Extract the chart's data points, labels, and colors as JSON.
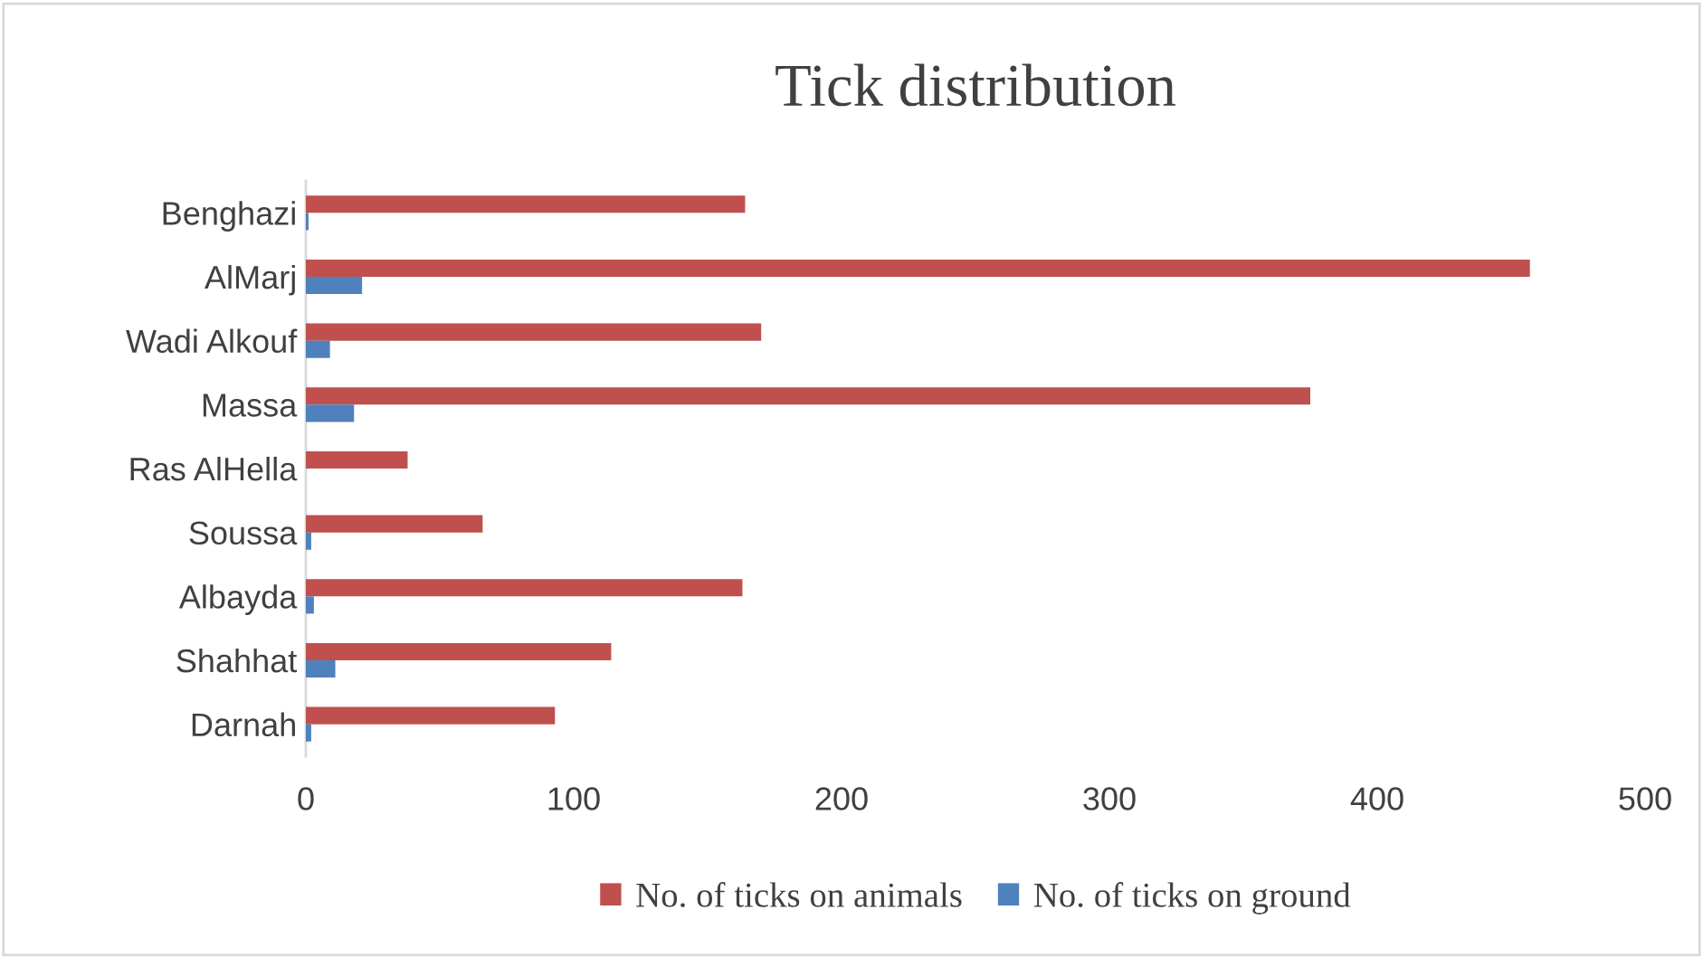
{
  "chart_data": {
    "type": "bar",
    "orientation": "horizontal",
    "title": "Tick distribution",
    "categories": [
      "Benghazi",
      "AlMarj",
      "Wadi Alkouf",
      "Massa",
      "Ras AlHella",
      "Soussa",
      "Albayda",
      "Shahhat",
      "Darnah"
    ],
    "series": [
      {
        "name": "No. of ticks on animals",
        "color": "#c0504d",
        "values": [
          164,
          457,
          170,
          375,
          38,
          66,
          163,
          114,
          93
        ]
      },
      {
        "name": "No. of ticks on ground",
        "color": "#4f81bd",
        "values": [
          1,
          21,
          9,
          18,
          0,
          2,
          3,
          11,
          2
        ]
      }
    ],
    "xlim": [
      0,
      500
    ],
    "xticks": [
      0,
      100,
      200,
      300,
      400,
      500
    ],
    "grid": false,
    "legend": "bottom"
  }
}
